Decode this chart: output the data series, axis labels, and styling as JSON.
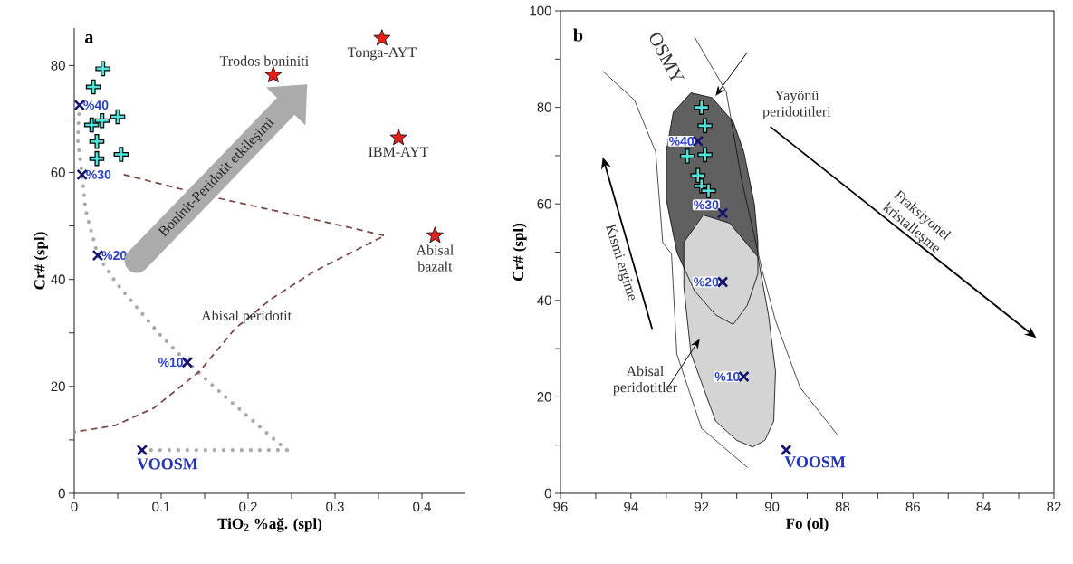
{
  "chart_data": [
    {
      "type": "scatter",
      "xlabel": "TiO$_{2}$ %ağ. (spl)",
      "ylabel": "Cr# (spl)",
      "xlim": [
        0,
        0.45
      ],
      "ylim": [
        0,
        87
      ],
      "xticks": [
        0,
        {
          "value": 0.05,
          "label": null
        },
        0.1,
        {
          "value": 0.15,
          "label": null
        },
        0.2,
        {
          "value": 0.25,
          "label": null
        },
        0.3,
        {
          "value": 0.35,
          "label": null
        },
        0.4
      ],
      "yticks": [
        0,
        {
          "value": 10,
          "label": null
        },
        20,
        {
          "value": 30,
          "label": null
        },
        40,
        {
          "value": 50,
          "label": null
        },
        60,
        {
          "value": 70,
          "label": null
        },
        80
      ],
      "annotations": [
        "a",
        {
          "text": "Trodos boniniti",
          "x": 0.229,
          "y": 78.2
        },
        {
          "text": "Tonga-AYT",
          "x": 0.354,
          "y": 85.1
        },
        {
          "text": "IBM-AYT",
          "x": 0.373,
          "y": 66.5
        },
        {
          "text": "Abisal bazalt",
          "x": 0.415,
          "y": 48.2
        },
        {
          "text": "%40",
          "x": 0.006,
          "y": 72.6
        },
        {
          "text": "%30",
          "x": 0.009,
          "y": 59.6
        },
        {
          "text": "%20",
          "x": 0.027,
          "y": 44.5
        },
        {
          "text": "%10",
          "x": 0.13,
          "y": 24.5
        },
        {
          "text": "VOOSM",
          "x": 0.078,
          "y": 8.1
        },
        "Abisal peridotit",
        "Boninit-Peridotit etkileşimi"
      ],
      "series": [
        {
          "type": "line",
          "line_style": "dotted",
          "marker": "none",
          "color": "#a8a8a8",
          "x": [
            0.006,
            0.004,
            0.009,
            0.013,
            0.027,
            0.048,
            0.099,
            0.13,
            0.172,
            0.23,
            0.245,
            0.085
          ],
          "values": [
            72.6,
            66,
            59.6,
            53,
            44.5,
            39.4,
            29.6,
            24.5,
            18.3,
            10.1,
            8.1,
            8.1
          ]
        },
        {
          "type": "line",
          "line_style": "dashed",
          "marker": "none",
          "color": "#7a4242",
          "x": [
            0.057,
            0.157,
            0.255,
            0.357,
            0.276,
            0.227,
            0.185,
            0.144,
            0.092,
            0.047,
            0.001
          ],
          "values": [
            59.6,
            55.5,
            52,
            48.2,
            41.5,
            36.4,
            30.8,
            22.8,
            16,
            12.7,
            11.5
          ]
        },
        {
          "marker": "plus",
          "color": "#4fe3dc",
          "x": [
            0.033,
            0.022,
            0.05,
            0.032,
            0.02,
            0.026,
            0.054,
            0.026
          ],
          "values": [
            79.4,
            76,
            70.4,
            69.7,
            68.9,
            65.8,
            63.4,
            62.6
          ]
        },
        {
          "marker": "cross",
          "color": "#141470",
          "x": [
            0.006,
            0.009,
            0.027,
            0.13
          ],
          "values": [
            72.6,
            59.6,
            44.5,
            24.5
          ]
        },
        {
          "marker": "cross",
          "color": "#141470",
          "x": [
            0.078
          ],
          "values": [
            8.1
          ]
        },
        {
          "marker": "star",
          "color": "#e8201c",
          "x": [
            0.229,
            0.354,
            0.373,
            0.415
          ],
          "values": [
            78.2,
            85.1,
            66.5,
            48.2
          ]
        }
      ]
    },
    {
      "type": "scatter",
      "xlabel": "Fo (ol)",
      "ylabel": "Cr# (spl)",
      "xlim": [
        96,
        82
      ],
      "ylim": [
        0,
        100
      ],
      "xticks": [
        96,
        {
          "value": 95,
          "label": null
        },
        94,
        {
          "value": 93,
          "label": null
        },
        92,
        {
          "value": 91,
          "label": null
        },
        90,
        {
          "value": 89,
          "label": null
        },
        88,
        {
          "value": 87,
          "label": null
        },
        86,
        {
          "value": 85,
          "label": null
        },
        84,
        {
          "value": 83,
          "label": null
        },
        82
      ],
      "yticks": [
        0,
        {
          "value": 10,
          "label": null
        },
        20,
        {
          "value": 30,
          "label": null
        },
        40,
        {
          "value": 50,
          "label": null
        },
        60,
        {
          "value": 70,
          "label": null
        },
        80,
        {
          "value": 90,
          "label": null
        },
        100
      ],
      "annotations": [
        "b",
        "OSMY",
        "Yayönü peridotitleri",
        "Abisal peridotitler",
        "Kısmi ergime",
        "Fraksiyonel kristalleşme",
        {
          "text": "%40",
          "x": 92.1,
          "y": 73.0
        },
        {
          "text": "%30",
          "x": 91.4,
          "y": 58.1
        },
        {
          "text": "%20",
          "x": 91.4,
          "y": 43.8
        },
        {
          "text": "%10",
          "x": 90.8,
          "y": 24.2
        },
        {
          "text": "VOOSM",
          "x": 89.6,
          "y": 9.0
        }
      ],
      "series": [
        {
          "type": "area",
          "color": "#606060",
          "x": [
            92.3,
            91.7,
            91.1,
            90.8,
            90.5,
            90.4,
            90.4,
            90.7,
            91.1,
            91.6,
            92.2,
            92.7,
            93.0,
            93.0,
            92.8,
            92.3
          ],
          "values": [
            83,
            82,
            77,
            70.8,
            60,
            52,
            45.5,
            39,
            35,
            37,
            42,
            50,
            61,
            70.8,
            79,
            83
          ]
        },
        {
          "type": "area",
          "color": "#d4d4d4",
          "x": [
            91.95,
            91.2,
            90.4,
            90.1,
            89.9,
            89.95,
            90.2,
            90.55,
            91.0,
            91.6,
            92.3,
            92.5,
            92.5,
            91.95
          ],
          "values": [
            57.7,
            56,
            49,
            37,
            25.3,
            15,
            11,
            9.6,
            11,
            15,
            29,
            42.8,
            52,
            57.7
          ]
        },
        {
          "type": "line",
          "line_style": "solid",
          "marker": "none",
          "color": "#000000",
          "x": [
            94.8,
            93.9,
            93.3,
            93.1,
            92.85,
            92.7,
            92.0,
            90.7
          ],
          "values": [
            87.5,
            81.5,
            70.8,
            52,
            49.6,
            28.9,
            13.5,
            5.4
          ]
        },
        {
          "type": "line",
          "line_style": "solid",
          "marker": "none",
          "color": "#000000",
          "x": [
            92.2,
            91.3,
            90.85,
            90.3,
            89.9,
            89.2,
            88.15
          ],
          "values": [
            94.6,
            83.3,
            64.6,
            46.8,
            35.8,
            21.9,
            12.2
          ]
        },
        {
          "marker": "plus",
          "color": "#4fe3dc",
          "x": [
            92.0,
            91.9,
            92.4,
            91.9,
            92.1,
            92.0,
            91.8
          ],
          "values": [
            80.0,
            76.2,
            69.9,
            70.2,
            65.9,
            63.7,
            62.7
          ]
        },
        {
          "marker": "cross",
          "color": "#141470",
          "x": [
            92.1,
            91.4,
            91.4,
            90.8
          ],
          "values": [
            73.0,
            58.1,
            43.8,
            24.2
          ]
        },
        {
          "marker": "cross",
          "color": "#141470",
          "x": [
            89.6
          ],
          "values": [
            9.0
          ]
        }
      ]
    }
  ]
}
